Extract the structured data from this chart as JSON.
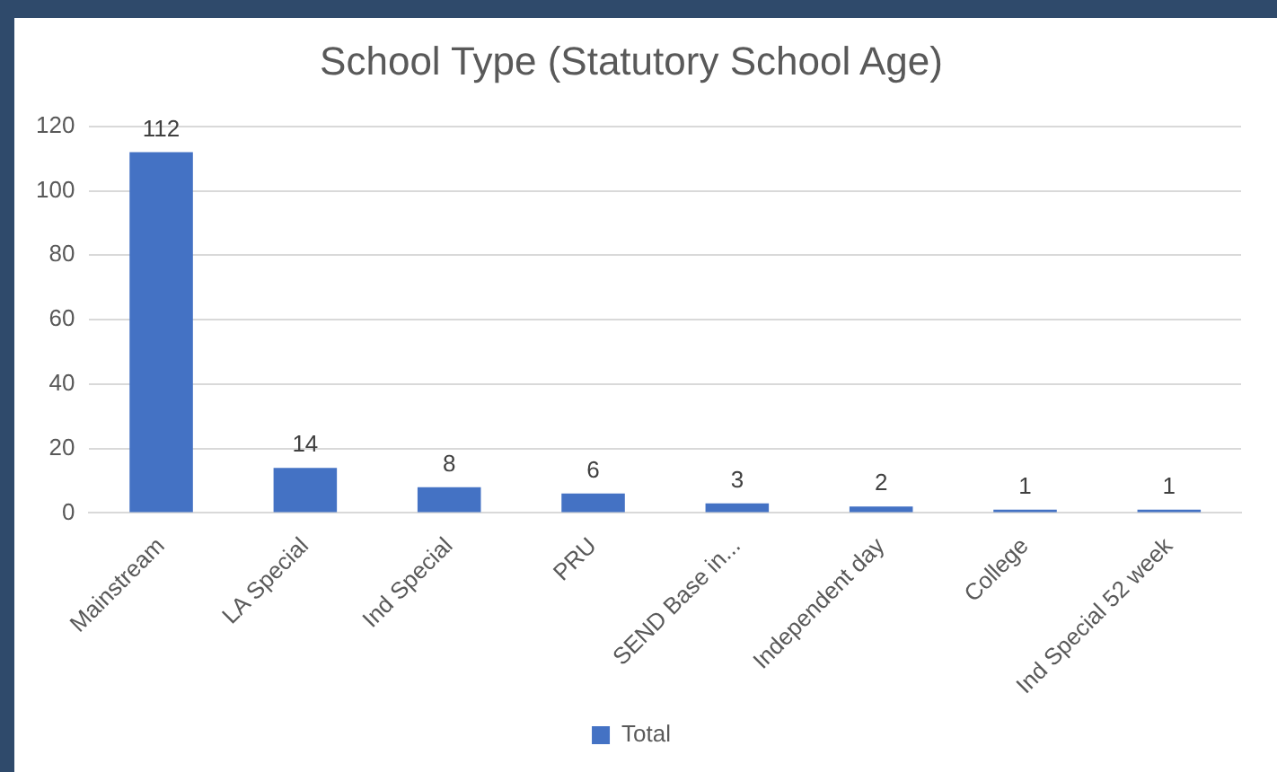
{
  "chart_data": {
    "type": "bar",
    "title": "School Type (Statutory School Age)",
    "categories": [
      "Mainstream",
      "LA Special",
      "Ind Special",
      "PRU",
      "SEND Base in...",
      "Independent day",
      "College",
      "Ind Special 52 week"
    ],
    "series": [
      {
        "name": "Total",
        "color": "#4472c4",
        "values": [
          112,
          14,
          8,
          6,
          3,
          2,
          1,
          1
        ]
      }
    ],
    "ylim": [
      0,
      120
    ],
    "yticks": [
      0,
      20,
      40,
      60,
      80,
      100,
      120
    ],
    "grid": "y",
    "legend": "bottom",
    "data_labels": true
  }
}
